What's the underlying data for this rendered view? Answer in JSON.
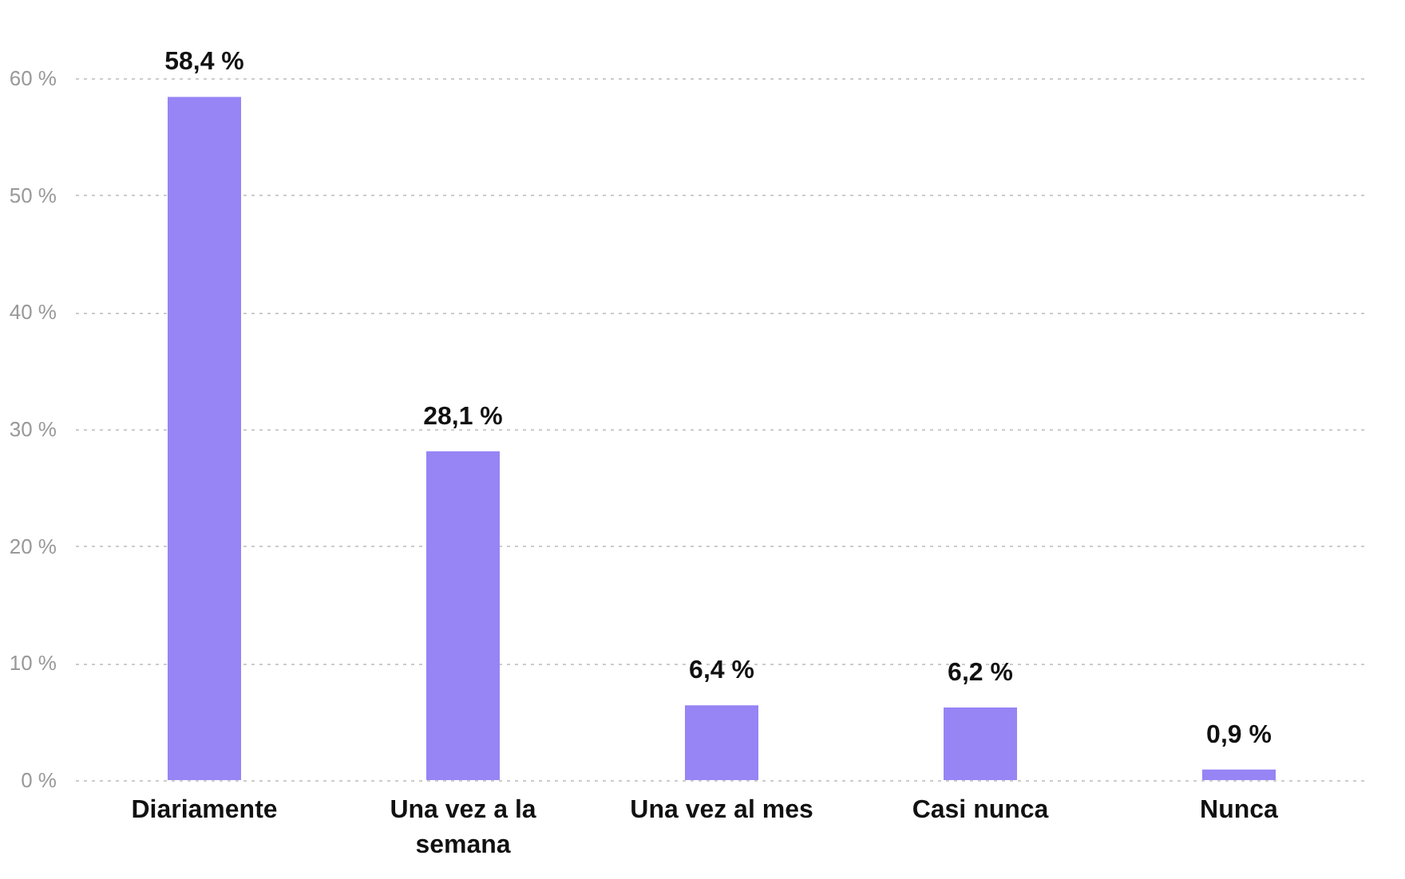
{
  "chart_data": {
    "type": "bar",
    "categories": [
      "Diariamente",
      "Una vez a la semana",
      "Una vez al mes",
      "Casi nunca",
      "Nunca"
    ],
    "values": [
      58.4,
      28.1,
      6.4,
      6.2,
      0.9
    ],
    "value_labels": [
      "58,4 %",
      "28,1 %",
      "6,4 %",
      "6,2 %",
      "0,9 %"
    ],
    "color": "#9784f5",
    "ylim": [
      0,
      60
    ],
    "yticks": [
      {
        "value": 0,
        "label": "0 %"
      },
      {
        "value": 10,
        "label": "10 %"
      },
      {
        "value": 20,
        "label": "20 %"
      },
      {
        "value": 30,
        "label": "30 %"
      },
      {
        "value": 40,
        "label": "40 %"
      },
      {
        "value": 50,
        "label": "50 %"
      },
      {
        "value": 60,
        "label": "60 %"
      }
    ],
    "grid": "y"
  }
}
